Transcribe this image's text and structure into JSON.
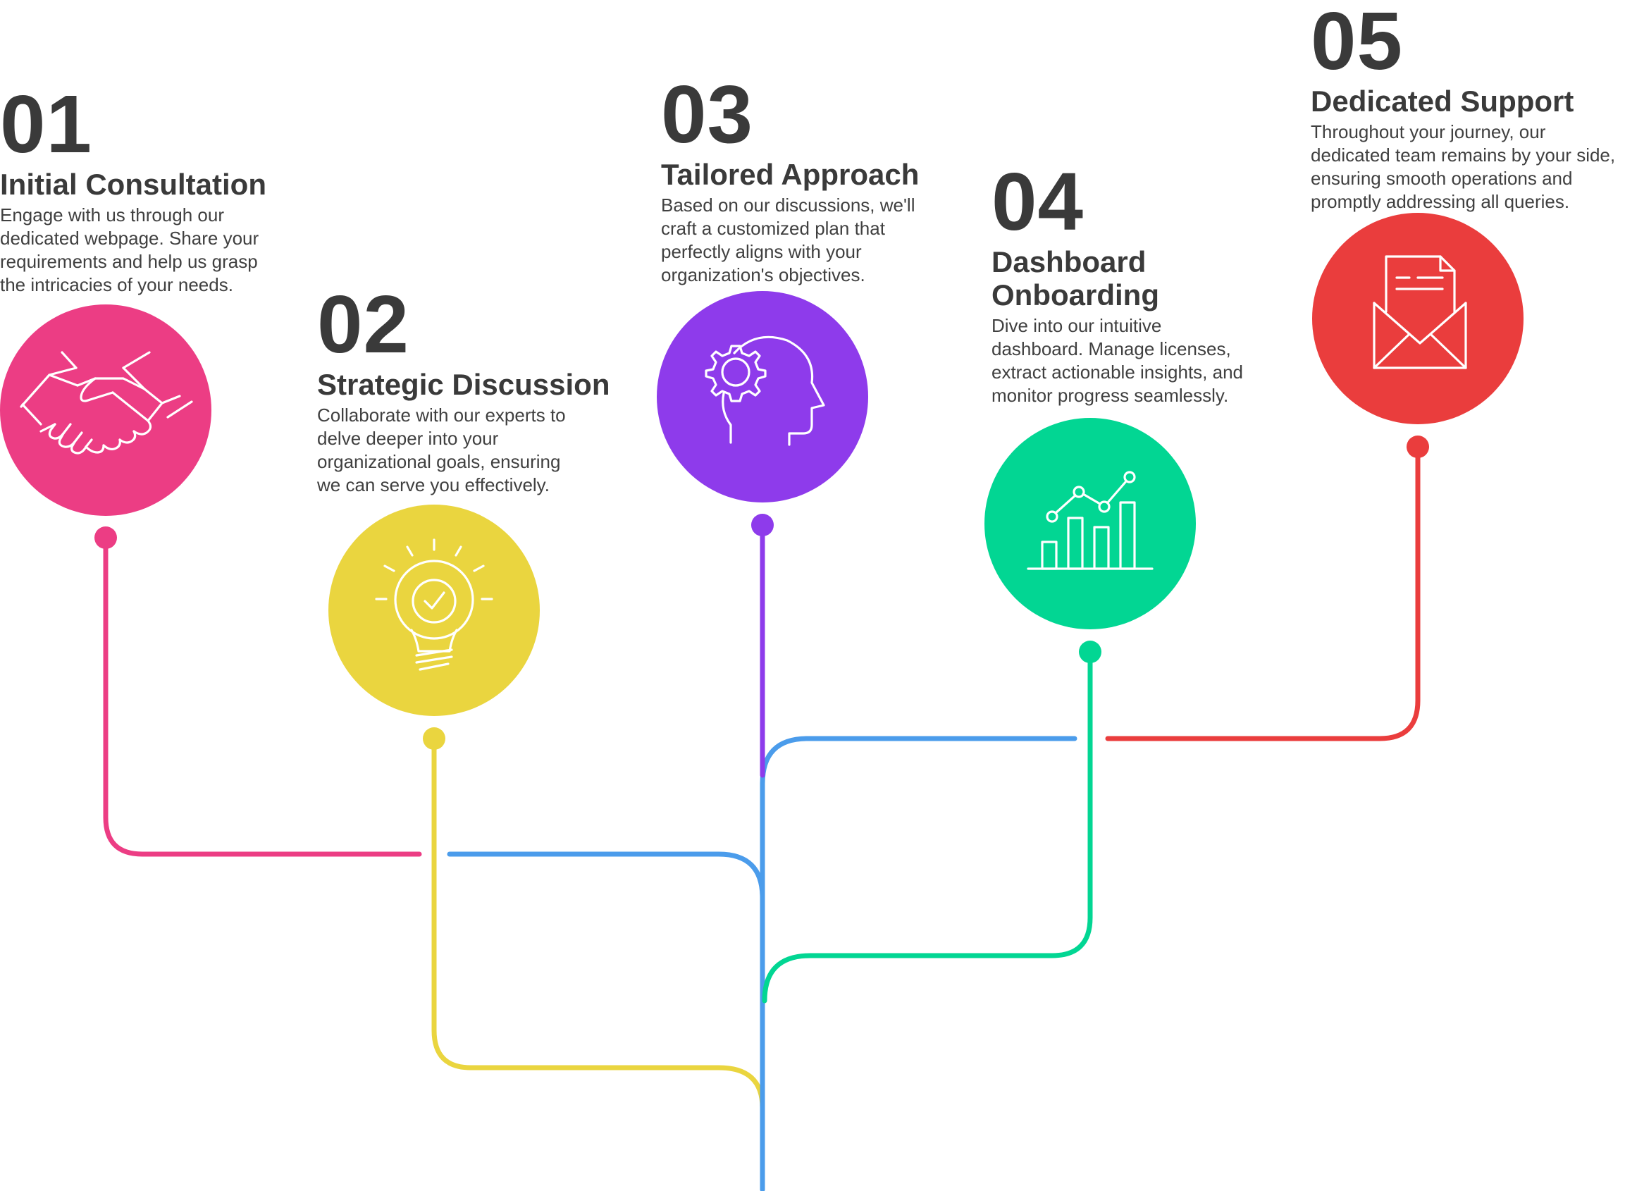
{
  "colors": {
    "step1": "#ec3d84",
    "step2": "#ead53f",
    "step3": "#8e3beb",
    "step4": "#02d693",
    "step5": "#ea3d3d",
    "trunk": "#4b9ceb",
    "text": "#3a3a3a"
  },
  "steps": [
    {
      "number": "01",
      "title": "Initial Consultation",
      "description": "Engage with us through our dedicated webpage. Share your requirements and help us grasp the intricacies of your needs.",
      "icon": "handshake-icon",
      "color": "#ec3d84"
    },
    {
      "number": "02",
      "title": "Strategic Discussion",
      "description": "Collaborate with our experts to delve deeper into your organizational goals, ensuring we can serve you effectively.",
      "icon": "lightbulb-check-icon",
      "color": "#ead53f"
    },
    {
      "number": "03",
      "title": "Tailored Approach",
      "description": "Based on our discussions, we'll craft a customized plan that perfectly aligns with your organization's objectives.",
      "icon": "head-gear-icon",
      "color": "#8e3beb"
    },
    {
      "number": "04",
      "title": "Dashboard Onboarding",
      "description": "Dive into our intuitive dashboard. Manage licenses, extract actionable insights, and monitor progress seamlessly.",
      "icon": "bar-chart-trend-icon",
      "color": "#02d693"
    },
    {
      "number": "05",
      "title": "Dedicated Support",
      "description": "Throughout your journey, our dedicated team remains by your side, ensuring smooth operations and promptly addressing all queries.",
      "icon": "envelope-document-icon",
      "color": "#ea3d3d"
    }
  ]
}
